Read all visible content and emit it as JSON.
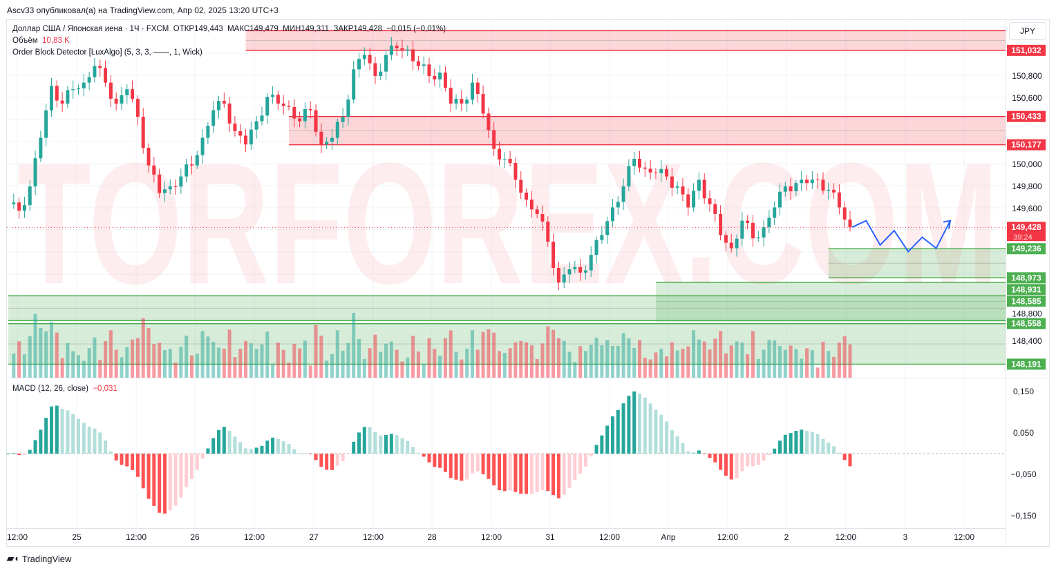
{
  "publisher_line": "Ascv33 опубликовал(а) на TradingView.com, Апр 02, 2025 13:20 UTC+3",
  "legend": {
    "symbol": "Доллар США / Японская иена · 1Ч · FXCM",
    "open_label": "ОТКР",
    "open": "149,443",
    "high_label": "МАКС",
    "high": "149,479",
    "low_label": "МИН",
    "low": "149,311",
    "close_label": "ЗАКР",
    "close": "149,428",
    "change": "−0,015 (−0,01%)",
    "volume_label": "Объём",
    "volume": "10,83 K",
    "indicator": "Order Block Detector [LuxAlgo] (5, 3, 3, ——, 1, Wick)",
    "macd_label": "MACD (12, 26, close)",
    "macd_value": "−0,031"
  },
  "currency": "JPY",
  "watermark": "TORFOREX.COM",
  "footer_logo": "TradingView",
  "colors": {
    "up": "#26a69a",
    "down": "#f23645",
    "bear_block": "#f23645",
    "bull_block": "#4caf50",
    "projection": "#2962ff"
  },
  "chart_data": {
    "type": "candlestick",
    "price_axis": {
      "ticks": [
        "150,800",
        "150,600",
        "150,000",
        "149,800",
        "149,600",
        "148,800",
        "148,400"
      ],
      "tick_values": [
        150.8,
        150.6,
        150.0,
        149.8,
        149.6,
        148.8,
        148.4
      ]
    },
    "time_axis": {
      "ticks": [
        "12:00",
        "25",
        "12:00",
        "26",
        "12:00",
        "27",
        "12:00",
        "28",
        "12:00",
        "31",
        "12:00",
        "Апр",
        "12:00",
        "2",
        "12:00",
        "3",
        "12:00"
      ]
    },
    "macd_axis": {
      "ticks": [
        "0,150",
        "0,050",
        "−0,050",
        "−0,150"
      ],
      "tick_values": [
        0.15,
        0.05,
        -0.05,
        -0.15
      ]
    },
    "closes_2h": [
      149.64,
      149.58,
      149.8,
      150.24,
      150.71,
      150.55,
      150.68,
      150.74,
      150.89,
      150.74,
      150.55,
      150.68,
      150.43,
      149.99,
      149.74,
      149.8,
      149.89,
      149.99,
      150.24,
      150.49,
      150.55,
      150.3,
      150.18,
      150.39,
      150.61,
      150.55,
      150.52,
      150.39,
      150.49,
      150.18,
      150.24,
      150.43,
      150.86,
      150.99,
      150.8,
      150.99,
      151.05,
      151.04,
      150.89,
      150.8,
      150.83,
      150.55,
      150.55,
      150.74,
      150.46,
      150.14,
      150.05,
      149.86,
      149.68,
      149.55,
      149.3,
      148.93,
      149.05,
      149.02,
      149.18,
      149.36,
      149.61,
      149.8,
      150.05,
      149.96,
      149.92,
      149.89,
      149.8,
      149.61,
      149.86,
      149.64,
      149.36,
      149.24,
      149.49,
      149.33,
      149.43,
      149.61,
      149.8,
      149.83,
      149.83,
      149.86,
      149.77,
      149.61,
      149.43
    ],
    "last_price": {
      "value": "149,428",
      "countdown": "39:24"
    },
    "order_blocks": [
      {
        "type": "bearish",
        "top": 151.21,
        "bottom": 151.032,
        "label": "151,032",
        "start_index": 44
      },
      {
        "type": "bearish",
        "top": 150.433,
        "bottom": 150.177,
        "label": "150,433",
        "label2": "150,177",
        "start_index": 52
      },
      {
        "type": "bullish",
        "top": 149.236,
        "bottom": 148.973,
        "label": "149,236",
        "label2": "148,973",
        "start_index": 152
      },
      {
        "type": "bullish",
        "top": 148.931,
        "bottom": 148.585,
        "label": "148,931",
        "start_index": 120
      },
      {
        "type": "bullish",
        "top": 148.81,
        "bottom": 148.585,
        "label": "148,585",
        "start_index": 0
      },
      {
        "type": "bullish",
        "top": 148.558,
        "bottom": 148.191,
        "label": "148,558",
        "label2": "148,191",
        "start_index": 0
      }
    ],
    "projection": [
      149.43,
      149.49,
      149.27,
      149.4,
      149.21,
      149.34,
      149.24,
      149.49
    ]
  }
}
